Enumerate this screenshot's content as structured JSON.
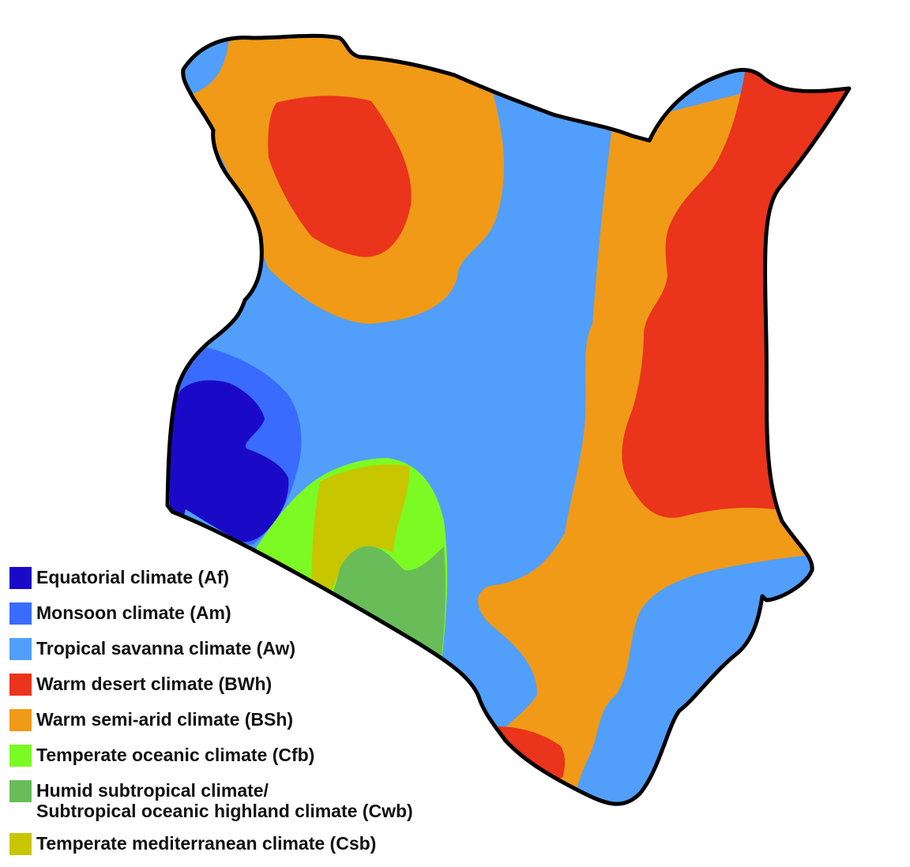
{
  "colors": {
    "Af": "#1a0ac8",
    "Am": "#3a6bff",
    "Aw": "#519ffb",
    "BWh": "#ea341b",
    "BSh": "#f09a17",
    "Cfb": "#7bfa24",
    "Cwb": "#69bd58",
    "Csb": "#c8c600",
    "outline": "#000000"
  },
  "legend": [
    {
      "code": "Af",
      "label": "Equatorial climate (Af)"
    },
    {
      "code": "Am",
      "label": "Monsoon climate (Am)"
    },
    {
      "code": "Aw",
      "label": "Tropical savanna climate (Aw)"
    },
    {
      "code": "BWh",
      "label": "Warm desert climate (BWh)"
    },
    {
      "code": "BSh",
      "label": "Warm semi-arid climate (BSh)"
    },
    {
      "code": "Cfb",
      "label": "Temperate oceanic climate (Cfb)"
    },
    {
      "code": "Cwb",
      "label": "Humid subtropical climate/\nSubtropical oceanic highland climate (Cwb)"
    },
    {
      "code": "Csb",
      "label": "Temperate mediterranean climate (Csb)"
    }
  ]
}
